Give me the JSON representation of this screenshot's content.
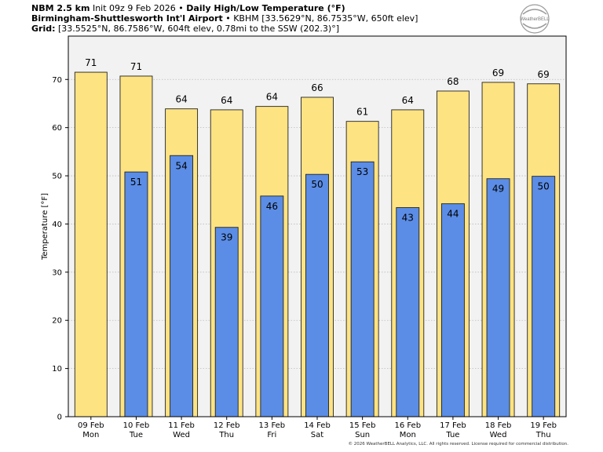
{
  "header": {
    "model": "NBM 2.5 km",
    "init": "Init 09z 9 Feb 2026",
    "sep": "•",
    "product": "Daily High/Low Temperature (°F)",
    "station_name": "Birmingham-Shuttlesworth Int'l Airport",
    "station_info": "KBHM [33.5629°N, 86.7535°W, 650ft elev]",
    "grid_label": "Grid:",
    "grid_info": "[33.5525°N, 86.7586°W, 604ft elev, 0.78mi to the SSW (202.3)°]"
  },
  "logo": {
    "text": "WeatherBELL",
    "icon": "weatherbell-swirl-logo"
  },
  "footer": "© 2026 WeatherBELL Analytics, LLC. All rights reserved. License required for commercial distribution.",
  "colors": {
    "high": "#fde382",
    "low": "#5b8de6",
    "plot_bg": "#f2f2f2",
    "grid": "#bbbbbb"
  },
  "chart_data": {
    "type": "bar",
    "title": "Daily High/Low Temperature (°F)",
    "xlabel": "",
    "ylabel": "Temperature [°F]",
    "ylim": [
      0,
      79
    ],
    "yticks": [
      0,
      10,
      20,
      30,
      40,
      50,
      60,
      70
    ],
    "grid": true,
    "categories": [
      "09 Feb",
      "10 Feb",
      "11 Feb",
      "12 Feb",
      "13 Feb",
      "14 Feb",
      "15 Feb",
      "16 Feb",
      "17 Feb",
      "18 Feb",
      "19 Feb"
    ],
    "days": [
      "Mon",
      "Tue",
      "Wed",
      "Thu",
      "Fri",
      "Sat",
      "Sun",
      "Mon",
      "Tue",
      "Wed",
      "Thu"
    ],
    "series": [
      {
        "name": "High",
        "values": [
          71,
          71,
          64,
          64,
          64,
          66,
          61,
          64,
          68,
          69,
          69
        ],
        "exact": [
          71.5,
          70.7,
          63.9,
          63.7,
          64.4,
          66.3,
          61.3,
          63.7,
          67.6,
          69.4,
          69.1
        ]
      },
      {
        "name": "Low",
        "values": [
          null,
          51,
          54,
          39,
          46,
          50,
          53,
          43,
          44,
          49,
          50
        ],
        "exact": [
          null,
          50.8,
          54.2,
          39.3,
          45.8,
          50.3,
          52.9,
          43.4,
          44.2,
          49.4,
          49.9
        ]
      }
    ]
  }
}
